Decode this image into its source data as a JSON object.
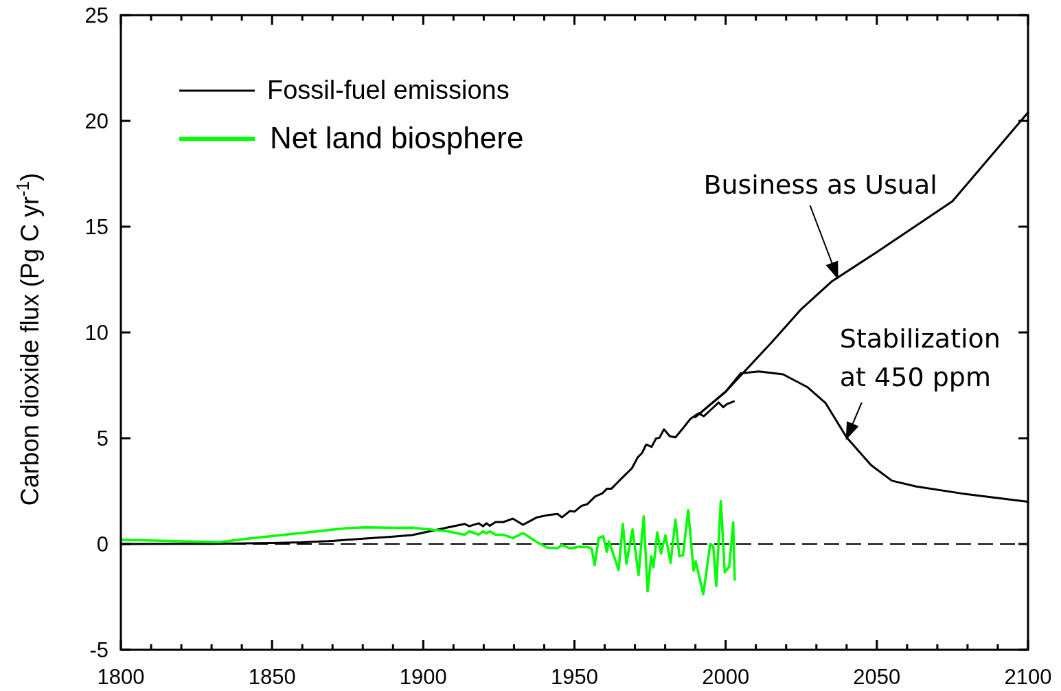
{
  "chart_data": {
    "type": "line",
    "ylabel": "Carbon dioxide flux (Pg C yr$^{-1}$)",
    "xlim": [
      1800,
      2100
    ],
    "xticks": [
      1800,
      {
        "value": 1810,
        "label": null
      },
      {
        "value": 1820,
        "label": null
      },
      {
        "value": 1830,
        "label": null
      },
      {
        "value": 1840,
        "label": null
      },
      1850,
      {
        "value": 1860,
        "label": null
      },
      {
        "value": 1870,
        "label": null
      },
      {
        "value": 1880,
        "label": null
      },
      {
        "value": 1890,
        "label": null
      },
      1900,
      {
        "value": 1910,
        "label": null
      },
      {
        "value": 1920,
        "label": null
      },
      {
        "value": 1930,
        "label": null
      },
      {
        "value": 1940,
        "label": null
      },
      1950,
      {
        "value": 1960,
        "label": null
      },
      {
        "value": 1970,
        "label": null
      },
      {
        "value": 1980,
        "label": null
      },
      {
        "value": 1990,
        "label": null
      },
      2000,
      {
        "value": 2010,
        "label": null
      },
      {
        "value": 2020,
        "label": null
      },
      {
        "value": 2030,
        "label": null
      },
      {
        "value": 2040,
        "label": null
      },
      2050,
      {
        "value": 2060,
        "label": null
      },
      {
        "value": 2070,
        "label": null
      },
      {
        "value": 2080,
        "label": null
      },
      {
        "value": 2090,
        "label": null
      },
      2100
    ],
    "ylim": [
      -5,
      25
    ],
    "yticks": [
      -5,
      0,
      5,
      10,
      15,
      20,
      25
    ],
    "grid": false,
    "legend": "top left",
    "marker": "none",
    "ref_lines": [
      {
        "axis": "y",
        "value": 0,
        "color": "#000000",
        "line_style": "dashed"
      }
    ],
    "annotations": [
      {
        "text": "Business as Usual",
        "x": 2037,
        "y": 12.59
      },
      {
        "text": "Stabilization at 450 ppm",
        "x": 2040,
        "y": 5.0
      }
    ],
    "series": [
      {
        "name": "Fossil-fuel emissions",
        "color": "#000000",
        "x": [
          1800,
          1830,
          1850,
          1860,
          1870,
          1880,
          1890,
          1896.3,
          1907.7,
          1913.7,
          1915.2,
          1918.3,
          1919.8,
          1920.9,
          1922,
          1923.9,
          1926.5,
          1929.6,
          1933,
          1937.6,
          1941,
          1944.4,
          1945.9,
          1948.5,
          1950,
          1952.3,
          1954.2,
          1956.9,
          1959.2,
          1960.7,
          1962.2,
          1964.4,
          1966.7,
          1969,
          1970.9,
          1972.4,
          1973.7,
          1975.5,
          1977,
          1978.1,
          1979.6,
          1981.5,
          1983.4,
          1985.6,
          1988.3,
          1991,
          1992.8,
          1994.7,
          1997.7,
          1999.2,
          2000.4,
          2002.7
        ],
        "values": [
          0,
          0.01,
          0.05,
          0.08,
          0.15,
          0.25,
          0.35,
          0.42,
          0.77,
          0.95,
          0.84,
          0.98,
          0.84,
          0.98,
          0.86,
          1.04,
          1.04,
          1.2,
          0.91,
          1.26,
          1.36,
          1.42,
          1.26,
          1.56,
          1.53,
          1.8,
          1.88,
          2.25,
          2.39,
          2.61,
          2.61,
          2.93,
          3.26,
          3.58,
          4.09,
          4.31,
          4.7,
          4.59,
          4.99,
          5.02,
          5.42,
          5.1,
          5.04,
          5.42,
          5.91,
          6.18,
          6.04,
          6.29,
          6.69,
          6.47,
          6.61,
          6.74
        ]
      },
      {
        "name": "Net land biosphere",
        "color": "#00ff00",
        "x": [
          1800,
          1832.6,
          1842.9,
          1865.5,
          1874.5,
          1881.3,
          1891.7,
          1896.3,
          1907.7,
          1913.7,
          1915.2,
          1918.3,
          1919.8,
          1920.9,
          1922,
          1923.9,
          1926.5,
          1929.6,
          1933,
          1937.6,
          1941,
          1944.4,
          1945.9,
          1948.5,
          1951.5,
          1954.5,
          1955.7,
          1956.7,
          1958,
          1959.5,
          1960.7,
          1961.4,
          1962.6,
          1964.6,
          1966,
          1967.2,
          1969.2,
          1971.2,
          1972.9,
          1974.2,
          1975.4,
          1976.1,
          1977.4,
          1978.6,
          1980.1,
          1981.8,
          1983.4,
          1984.7,
          1985.9,
          1987.6,
          1989.4,
          1990.1,
          1992.6,
          1994.9,
          1995.9,
          1996.9,
          1998.4,
          1999.7,
          2001.2,
          2002.5,
          2003
        ],
        "values": [
          0.2,
          0.09,
          0.27,
          0.61,
          0.75,
          0.79,
          0.76,
          0.77,
          0.61,
          0.44,
          0.6,
          0.44,
          0.6,
          0.5,
          0.6,
          0.44,
          0.44,
          0.28,
          0.52,
          0.09,
          -0.17,
          -0.2,
          -0.04,
          -0.21,
          -0.13,
          -0.15,
          -0.24,
          -1.0,
          0.28,
          0.37,
          -0.37,
          0.12,
          -0.37,
          -1.23,
          0.95,
          -0.93,
          0.69,
          -1.47,
          1.31,
          -2.23,
          -0.58,
          -1.1,
          0.55,
          -0.45,
          0.41,
          -0.89,
          1.15,
          -0.58,
          -0.53,
          1.6,
          -1.26,
          -0.82,
          -2.37,
          0.01,
          -0.1,
          -1.99,
          2.04,
          -1.34,
          -1.06,
          1.02,
          -1.69
        ]
      },
      {
        "color": "#000000",
        "x": [
          1990,
          2000,
          2015,
          2025,
          2035,
          2050,
          2075,
          2100
        ],
        "values": [
          6.0,
          7.2,
          9.5,
          11.1,
          12.4,
          13.8,
          16.2,
          20.4
        ]
      },
      {
        "color": "#000000",
        "x": [
          1990,
          2000,
          2005,
          2011,
          2019,
          2027,
          2033,
          2040,
          2048,
          2055,
          2063,
          2078,
          2100
        ],
        "values": [
          6.0,
          7.2,
          8.07,
          8.16,
          8.02,
          7.42,
          6.67,
          5.04,
          3.74,
          2.99,
          2.72,
          2.39,
          2.0
        ]
      }
    ]
  }
}
